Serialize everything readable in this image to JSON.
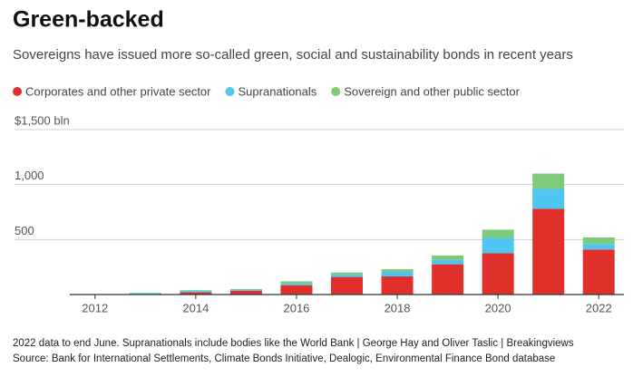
{
  "chart_data": {
    "type": "stacked_bar",
    "title": "Green-backed",
    "subtitle": "Sovereigns have issued more so-called green, social and sustainability bonds in recent years",
    "categories": [
      "2012",
      null,
      "2014",
      null,
      "2016",
      null,
      "2018",
      null,
      "2020",
      null,
      "2022"
    ],
    "series": [
      {
        "name": "Corporates and other private sector",
        "color": "#e0302c",
        "values": [
          2,
          5,
          20,
          35,
          85,
          160,
          165,
          275,
          375,
          780,
          410
        ]
      },
      {
        "name": "Supranationals",
        "color": "#4fc6f2",
        "values": [
          2,
          8,
          15,
          10,
          15,
          20,
          45,
          40,
          140,
          180,
          50
        ]
      },
      {
        "name": "Sovereign and other public sector",
        "color": "#7fc97c",
        "values": [
          0,
          2,
          5,
          5,
          20,
          20,
          20,
          40,
          75,
          140,
          60
        ]
      }
    ],
    "ylim": [
      0,
      1500
    ],
    "yticks": [
      500,
      {
        "value": 1000,
        "label": "1,000"
      },
      {
        "value": 1500,
        "label": "$1,500 bln"
      }
    ],
    "grid": true,
    "notes": "2022 data to end June. Supranationals include bodies like the World Bank | George Hay and Oliver Taslic | Breakingviews",
    "source": "Source: Bank for International Settlements, Climate Bonds Initiative, Dealogic, Environmental Finance Bond database"
  }
}
